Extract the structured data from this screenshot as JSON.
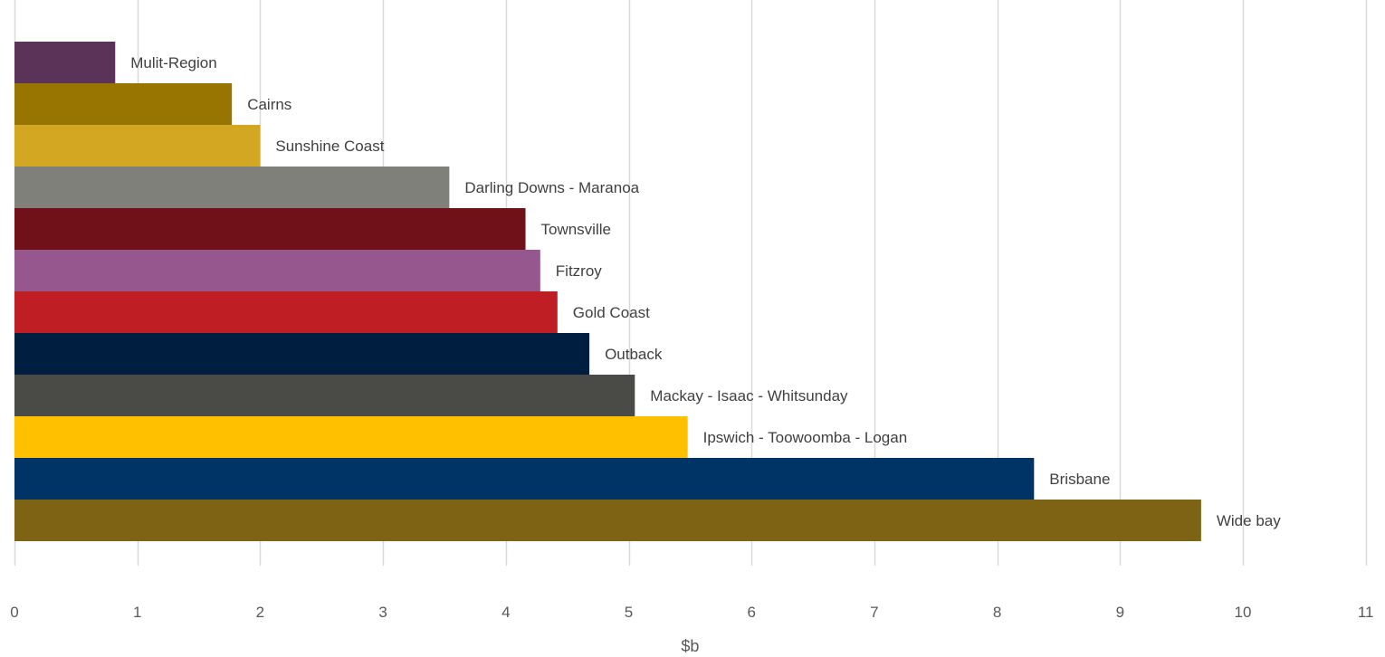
{
  "chart_data": {
    "type": "bar",
    "orientation": "horizontal",
    "xlabel": "$b",
    "xlim": [
      0,
      11
    ],
    "xticks": [
      0,
      1,
      2,
      3,
      4,
      5,
      6,
      7,
      8,
      9,
      10,
      11
    ],
    "grid": true,
    "legend": "none",
    "bars": [
      {
        "label": "Mulit-Region",
        "value": 0.82,
        "color": "#5B3359"
      },
      {
        "label": "Cairns",
        "value": 1.77,
        "color": "#987400"
      },
      {
        "label": "Sunshine Coast",
        "value": 2.0,
        "color": "#D4A722"
      },
      {
        "label": "Darling Downs - Maranoa",
        "value": 3.54,
        "color": "#7F807A"
      },
      {
        "label": "Townsville",
        "value": 4.16,
        "color": "#701018"
      },
      {
        "label": "Fitzroy",
        "value": 4.28,
        "color": "#96578F"
      },
      {
        "label": "Gold Coast",
        "value": 4.42,
        "color": "#BE1E24"
      },
      {
        "label": "Outback",
        "value": 4.68,
        "color": "#001E3F"
      },
      {
        "label": "Mackay - Isaac - Whitsunday",
        "value": 5.05,
        "color": "#4A4A47"
      },
      {
        "label": "Ipswich - Toowoomba - Logan",
        "value": 5.48,
        "color": "#FFC000"
      },
      {
        "label": "Brisbane",
        "value": 8.3,
        "color": "#003366"
      },
      {
        "label": "Wide bay",
        "value": 9.66,
        "color": "#7F6315"
      }
    ]
  }
}
